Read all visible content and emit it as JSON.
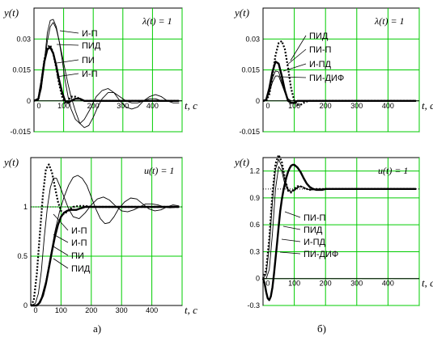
{
  "captions": {
    "a": "а)",
    "b": "б)"
  },
  "chart_data": [
    {
      "id": "a_top",
      "type": "line",
      "ylabel": "y(t)",
      "xlabel": "t, c",
      "corner_label": "λ(t) = 1",
      "xlim": [
        0,
        500
      ],
      "ylim": [
        -0.015,
        0.045
      ],
      "xticks": [
        0,
        100,
        200,
        300,
        400
      ],
      "yticks": [
        -0.015,
        0,
        0.015,
        0.03
      ],
      "ytick_labels": [
        "-0.015",
        "0",
        "0.015",
        "0.03"
      ],
      "grid": true,
      "grid_color": "#00cc00",
      "legend": [
        "И-П",
        "ПИД",
        "ПИ",
        "И-П"
      ],
      "series": [
        {
          "name": "И-П",
          "style": "thin",
          "x": [
            0,
            15,
            25,
            35,
            45,
            55,
            65,
            75,
            85,
            95,
            105,
            115,
            125,
            140,
            155,
            170,
            190,
            210,
            230,
            250,
            270,
            290,
            310,
            330,
            350,
            370,
            390,
            410,
            430,
            450,
            470,
            490
          ],
          "y": [
            0,
            0.0005,
            0.006,
            0.019,
            0.033,
            0.039,
            0.0395,
            0.036,
            0.029,
            0.02,
            0.01,
            0.002,
            -0.004,
            -0.009,
            -0.011,
            -0.009,
            -0.004,
            0.002,
            0.005,
            0.006,
            0.004,
            0.0,
            -0.003,
            -0.004,
            -0.003,
            0.0,
            0.002,
            0.003,
            0.002,
            0.0,
            -0.001,
            -0.001
          ]
        },
        {
          "name": "ПИ",
          "style": "thin",
          "x": [
            0,
            15,
            25,
            35,
            45,
            55,
            65,
            75,
            85,
            95,
            105,
            115,
            125,
            140,
            155,
            170,
            185,
            200,
            215,
            230,
            250,
            270,
            290,
            310,
            330,
            350,
            370,
            390,
            410,
            430,
            450,
            470,
            490
          ],
          "y": [
            0,
            0.0005,
            0.006,
            0.017,
            0.029,
            0.036,
            0.038,
            0.035,
            0.029,
            0.022,
            0.015,
            0.008,
            0.002,
            -0.005,
            -0.011,
            -0.013,
            -0.012,
            -0.008,
            -0.003,
            0.001,
            0.004,
            0.004,
            0.002,
            0.0,
            -0.001,
            -0.001,
            0.0,
            0.001,
            0.001,
            0.0,
            0.0,
            0.0,
            0.0
          ]
        },
        {
          "name": "ПИД",
          "style": "dotted",
          "x": [
            0,
            15,
            25,
            35,
            45,
            55,
            65,
            75,
            85,
            95,
            105,
            115,
            125,
            140,
            155,
            170,
            190,
            210,
            230,
            250,
            270,
            300,
            350,
            400,
            450,
            490
          ],
          "y": [
            0,
            0.001,
            0.009,
            0.02,
            0.026,
            0.027,
            0.023,
            0.016,
            0.008,
            0.002,
            -0.001,
            0.0,
            0.002,
            0.002,
            0.001,
            0.0,
            0.0,
            0.0,
            0.0,
            0.0,
            0.0,
            0.0,
            0.0,
            0.0,
            0.0,
            0.0
          ]
        },
        {
          "name": "И-П",
          "style": "thick",
          "x": [
            0,
            15,
            25,
            35,
            45,
            55,
            65,
            75,
            85,
            95,
            105,
            115,
            125,
            140,
            155,
            170,
            190,
            210,
            230,
            250,
            270,
            300,
            350,
            400,
            450,
            490
          ],
          "y": [
            0,
            0.001,
            0.009,
            0.019,
            0.025,
            0.026,
            0.023,
            0.017,
            0.01,
            0.004,
            0.0,
            -0.001,
            0.0,
            0.001,
            0.001,
            0.0,
            0.0,
            0.0,
            0.0,
            0.0,
            0.0,
            0.0,
            0.0,
            0.0,
            0.0,
            0.0
          ]
        }
      ]
    },
    {
      "id": "a_bottom",
      "type": "line",
      "ylabel": "y(t)",
      "xlabel": "t, c",
      "corner_label": "u(t) = 1",
      "xlim": [
        0,
        500
      ],
      "ylim": [
        0,
        1.5
      ],
      "xticks": [
        0,
        100,
        200,
        300,
        400
      ],
      "yticks": [
        0,
        0.5,
        1
      ],
      "ytick_labels": [
        "0",
        "0.5",
        "1"
      ],
      "grid": true,
      "grid_color": "#00cc00",
      "legend": [
        "И-П",
        "И-П",
        "ПИ",
        "ПИД"
      ],
      "series": [
        {
          "name": "ПИД",
          "style": "dotted",
          "x": [
            0,
            10,
            20,
            30,
            40,
            50,
            60,
            70,
            80,
            90,
            100,
            110,
            120,
            130,
            140,
            160,
            180,
            200,
            240,
            280,
            320,
            400,
            490
          ],
          "y": [
            0,
            0.05,
            0.32,
            0.72,
            1.12,
            1.38,
            1.43,
            1.35,
            1.2,
            1.05,
            0.96,
            0.93,
            0.95,
            0.98,
            1.0,
            1.01,
            1.01,
            1.0,
            1.0,
            1.0,
            1.0,
            1.0,
            1.0
          ]
        },
        {
          "name": "ПИ",
          "style": "thin",
          "x": [
            0,
            15,
            25,
            35,
            45,
            55,
            65,
            75,
            85,
            95,
            110,
            125,
            140,
            160,
            180,
            200,
            220,
            240,
            260,
            280,
            300,
            320,
            340,
            360,
            380,
            400,
            420,
            440,
            460,
            490
          ],
          "y": [
            0,
            0.02,
            0.12,
            0.35,
            0.7,
            1.0,
            1.2,
            1.29,
            1.29,
            1.22,
            1.1,
            0.98,
            0.9,
            0.88,
            0.94,
            1.02,
            1.08,
            1.1,
            1.07,
            1.01,
            0.96,
            0.95,
            0.97,
            1.0,
            1.03,
            1.03,
            1.02,
            1.0,
            0.99,
            1.0
          ]
        },
        {
          "name": "И-П",
          "style": "thin",
          "x": [
            0,
            15,
            25,
            35,
            50,
            65,
            80,
            95,
            110,
            125,
            140,
            155,
            170,
            185,
            200,
            215,
            230,
            245,
            260,
            275,
            290,
            310,
            330,
            350,
            370,
            390,
            410,
            430,
            450,
            470,
            490
          ],
          "y": [
            0,
            0.0,
            0.02,
            0.08,
            0.25,
            0.5,
            0.75,
            0.95,
            1.1,
            1.22,
            1.3,
            1.32,
            1.29,
            1.22,
            1.1,
            0.98,
            0.88,
            0.83,
            0.84,
            0.9,
            0.98,
            1.05,
            1.09,
            1.08,
            1.03,
            0.98,
            0.96,
            0.97,
            1.0,
            1.02,
            1.01
          ]
        },
        {
          "name": "И-П",
          "style": "thick",
          "x": [
            0,
            20,
            30,
            40,
            50,
            60,
            70,
            80,
            90,
            100,
            110,
            120,
            130,
            140,
            150,
            160,
            170,
            180,
            200,
            220,
            240,
            260,
            300,
            350,
            400,
            450,
            490
          ],
          "y": [
            0,
            0.0,
            0.03,
            0.1,
            0.22,
            0.38,
            0.55,
            0.7,
            0.82,
            0.9,
            0.94,
            0.96,
            0.97,
            0.97,
            0.97,
            0.98,
            0.99,
            1.0,
            1.0,
            1.0,
            1.0,
            1.0,
            1.0,
            1.0,
            1.0,
            1.0,
            1.0
          ]
        }
      ]
    },
    {
      "id": "b_top",
      "type": "line",
      "ylabel": "y(t)",
      "xlabel": "t, c",
      "corner_label": "λ(t) = 1",
      "xlim": [
        0,
        500
      ],
      "ylim": [
        -0.015,
        0.045
      ],
      "xticks": [
        0,
        100,
        200,
        300,
        400
      ],
      "yticks": [
        -0.015,
        0,
        0.015,
        0.03
      ],
      "ytick_labels": [
        "-0.015",
        "0",
        "0.015",
        "0.03"
      ],
      "grid": true,
      "grid_color": "#00cc00",
      "legend": [
        "ПИД",
        "ПИ-П",
        "И-ПД",
        "ПИ-ДИФ"
      ],
      "series": [
        {
          "name": "ПИД",
          "style": "dotted",
          "x": [
            0,
            10,
            20,
            30,
            40,
            50,
            60,
            70,
            80,
            90,
            100,
            110,
            120,
            130,
            145,
            160,
            180,
            200,
            240,
            300,
            400,
            490
          ],
          "y": [
            0,
            0.0,
            0.003,
            0.012,
            0.022,
            0.028,
            0.029,
            0.025,
            0.016,
            0.006,
            0.0,
            -0.002,
            -0.002,
            -0.001,
            0.0,
            0.0,
            0.0,
            0.0,
            0.0,
            0.0,
            0.0,
            0.0
          ]
        },
        {
          "name": "ПИ-П",
          "style": "thick",
          "x": [
            0,
            10,
            20,
            30,
            40,
            50,
            60,
            70,
            80,
            90,
            100,
            110,
            120,
            135,
            150,
            170,
            200,
            250,
            300,
            400,
            490
          ],
          "y": [
            0,
            0.0005,
            0.006,
            0.014,
            0.019,
            0.018,
            0.012,
            0.005,
            0.0,
            -0.001,
            -0.001,
            0.0,
            0.0,
            0.0,
            0.0,
            0.0,
            0.0,
            0.0,
            0.0,
            0.0,
            0.0
          ]
        },
        {
          "name": "И-ПД",
          "style": "thin",
          "x": [
            0,
            10,
            20,
            30,
            40,
            50,
            60,
            70,
            80,
            90,
            100,
            110,
            120,
            135,
            150,
            170,
            200,
            250,
            300,
            400,
            490
          ],
          "y": [
            0,
            0.0005,
            0.005,
            0.011,
            0.0145,
            0.014,
            0.009,
            0.004,
            0.001,
            0.0,
            0.0,
            0.0,
            0.0,
            0.0,
            0.0,
            0.0,
            0.0,
            0.0,
            0.0,
            0.0,
            0.0
          ]
        },
        {
          "name": "ПИ-ДИФ",
          "style": "thin",
          "x": [
            0,
            10,
            20,
            30,
            40,
            50,
            60,
            70,
            80,
            90,
            100,
            120,
            150,
            200,
            250,
            300,
            400,
            490
          ],
          "y": [
            0,
            0.0005,
            0.004,
            0.009,
            0.012,
            0.012,
            0.008,
            0.004,
            0.001,
            0.0,
            0.0,
            0.0,
            0.0,
            0.0,
            0.0,
            0.0,
            0.0,
            0.0
          ]
        }
      ]
    },
    {
      "id": "b_bottom",
      "type": "line",
      "ylabel": "y(t)",
      "xlabel": "t, c",
      "corner_label": "u(t) = 1",
      "xlim": [
        0,
        500
      ],
      "ylim": [
        -0.3,
        1.35
      ],
      "xticks": [
        0,
        100,
        200,
        300,
        400
      ],
      "yticks": [
        -0.3,
        0,
        0.3,
        0.6,
        0.9,
        1.2
      ],
      "ytick_labels": [
        "-0.3",
        "0",
        "0.3",
        "0.6",
        "0.9",
        "1.2"
      ],
      "grid": true,
      "grid_color": "#00cc00",
      "legend": [
        "ПИ-П",
        "ПИД",
        "И-ПД",
        "ПИ-ДИФ"
      ],
      "series": [
        {
          "name": "ПИД",
          "style": "dotted",
          "x": [
            0,
            10,
            20,
            30,
            40,
            50,
            60,
            70,
            80,
            90,
            100,
            110,
            120,
            130,
            140,
            150,
            160,
            170,
            180,
            200,
            220,
            250,
            300,
            400,
            490
          ],
          "y": [
            0,
            0.1,
            0.45,
            0.95,
            1.28,
            1.38,
            1.3,
            1.12,
            0.98,
            0.96,
            1.0,
            1.03,
            1.03,
            1.01,
            1.0,
            0.99,
            1.0,
            1.0,
            1.0,
            1.0,
            1.0,
            1.0,
            1.0,
            1.0,
            1.0
          ]
        },
        {
          "name": "И-ПД",
          "style": "thin",
          "x": [
            0,
            10,
            20,
            30,
            40,
            50,
            60,
            70,
            80,
            90,
            100,
            110,
            120,
            130,
            140,
            150,
            160,
            170,
            180,
            200,
            220,
            250,
            300,
            400,
            490
          ],
          "y": [
            0,
            0.05,
            0.35,
            0.85,
            1.22,
            1.33,
            1.25,
            1.1,
            1.0,
            0.97,
            0.98,
            1.01,
            1.03,
            1.02,
            1.0,
            0.99,
            0.99,
            1.0,
            1.0,
            1.0,
            1.0,
            1.0,
            1.0,
            1.0,
            1.0
          ]
        },
        {
          "name": "ПИ-ДИФ",
          "style": "thin",
          "x": [
            0,
            10,
            20,
            30,
            40,
            50,
            60,
            70,
            80,
            90,
            100,
            110,
            120,
            130,
            140,
            150,
            160,
            170,
            180,
            200,
            220,
            250,
            300,
            400,
            490
          ],
          "y": [
            0,
            0.0,
            0.1,
            0.5,
            1.0,
            1.25,
            1.2,
            1.05,
            0.98,
            0.97,
            0.99,
            1.02,
            1.03,
            1.02,
            1.0,
            0.99,
            1.0,
            1.0,
            1.0,
            1.0,
            1.0,
            1.0,
            1.0,
            1.0,
            1.0
          ]
        },
        {
          "name": "ПИ-П",
          "style": "thick",
          "x": [
            0,
            5,
            10,
            15,
            20,
            25,
            30,
            35,
            40,
            45,
            50,
            55,
            60,
            65,
            70,
            75,
            80,
            85,
            90,
            95,
            100,
            110,
            120,
            130,
            140,
            150,
            160,
            170,
            180,
            190,
            200,
            220,
            250,
            300,
            400,
            490
          ],
          "y": [
            0,
            -0.05,
            -0.15,
            -0.22,
            -0.24,
            -0.2,
            -0.1,
            0.05,
            0.22,
            0.4,
            0.58,
            0.75,
            0.88,
            0.98,
            1.06,
            1.13,
            1.19,
            1.23,
            1.26,
            1.27,
            1.27,
            1.24,
            1.19,
            1.12,
            1.06,
            1.02,
            1.0,
            0.99,
            0.99,
            0.99,
            1.0,
            1.0,
            1.0,
            1.0,
            1.0,
            1.0
          ]
        }
      ]
    }
  ]
}
